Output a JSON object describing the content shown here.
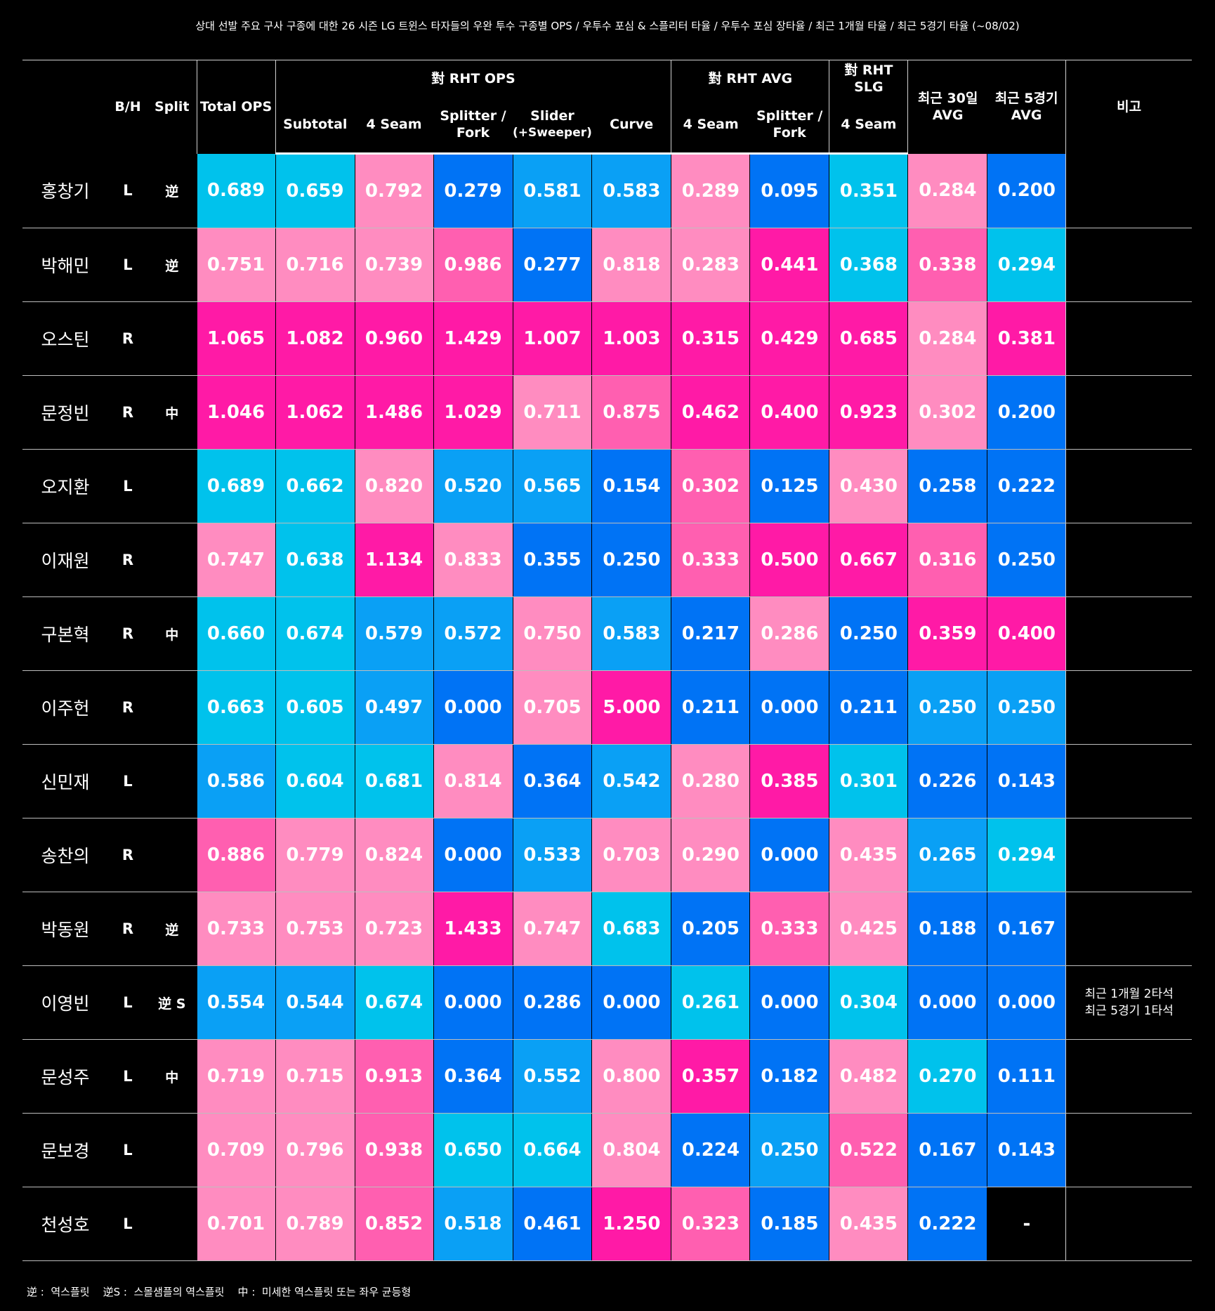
{
  "title": "상대 선발 주요 구사 구종에 대한 26 시즌 LG 트윈스 타자들의 우완 투수 구종별 OPS  / 우투수 포심 & 스플리터 타율 /  우투수 포심 장타율 / 최근 1개월 타율 / 최근 5경기 타율 (~08/02)",
  "header": {
    "bh": "B/H",
    "split": "Split",
    "total_ops": "Total OPS",
    "group_rht_ops": "對 RHT OPS",
    "group_rht_avg": "對 RHT AVG",
    "group_rht_slg_l1": "對 RHT",
    "group_rht_slg_l2": "SLG",
    "recent30_l1": "최근 30일",
    "recent30_l2": "AVG",
    "recent5_l1": "최근 5경기",
    "recent5_l2": "AVG",
    "note": "비고",
    "sub_subtotal": "Subtotal",
    "sub_4seam": "4 Seam",
    "sub_splitter_l1": "Splitter /",
    "sub_splitter_l2": "Fork",
    "sub_slider_l1": "Slider",
    "sub_slider_l2": "(+Sweeper)",
    "sub_curve": "Curve",
    "avg_4seam": "4 Seam",
    "avg_splitter_l1": "Splitter /",
    "avg_splitter_l2": "Fork",
    "slg_4seam": "4 Seam"
  },
  "colors": {
    "background": "#000000",
    "cyan": "#00c2ec",
    "sky": "#0aa0f5",
    "blue": "#0073f5",
    "light_pink": "#ff8cc0",
    "pink": "#ff5fb0",
    "hot_pink": "#ff1aa6"
  },
  "rows": [
    {
      "name": "홍창기",
      "bh": "L",
      "split": "逆",
      "note_l1": "",
      "note_l2": "",
      "values": [
        "0.689",
        "0.659",
        "0.792",
        "0.279",
        "0.581",
        "0.583",
        "0.289",
        "0.095",
        "0.351",
        "0.284",
        "0.200"
      ],
      "colors": [
        "cyan",
        "cyan",
        "light_pink",
        "blue",
        "sky",
        "sky",
        "light_pink",
        "blue",
        "cyan",
        "light_pink",
        "blue"
      ]
    },
    {
      "name": "박해민",
      "bh": "L",
      "split": "逆",
      "note_l1": "",
      "note_l2": "",
      "values": [
        "0.751",
        "0.716",
        "0.739",
        "0.986",
        "0.277",
        "0.818",
        "0.283",
        "0.441",
        "0.368",
        "0.338",
        "0.294"
      ],
      "colors": [
        "light_pink",
        "light_pink",
        "light_pink",
        "pink",
        "blue",
        "light_pink",
        "light_pink",
        "hot_pink",
        "cyan",
        "pink",
        "cyan"
      ]
    },
    {
      "name": "오스틴",
      "bh": "R",
      "split": "",
      "note_l1": "",
      "note_l2": "",
      "values": [
        "1.065",
        "1.082",
        "0.960",
        "1.429",
        "1.007",
        "1.003",
        "0.315",
        "0.429",
        "0.685",
        "0.284",
        "0.381"
      ],
      "colors": [
        "hot_pink",
        "hot_pink",
        "hot_pink",
        "hot_pink",
        "hot_pink",
        "hot_pink",
        "hot_pink",
        "hot_pink",
        "hot_pink",
        "light_pink",
        "hot_pink"
      ]
    },
    {
      "name": "문정빈",
      "bh": "R",
      "split": "中",
      "note_l1": "",
      "note_l2": "",
      "values": [
        "1.046",
        "1.062",
        "1.486",
        "1.029",
        "0.711",
        "0.875",
        "0.462",
        "0.400",
        "0.923",
        "0.302",
        "0.200"
      ],
      "colors": [
        "hot_pink",
        "hot_pink",
        "hot_pink",
        "hot_pink",
        "light_pink",
        "pink",
        "hot_pink",
        "hot_pink",
        "hot_pink",
        "light_pink",
        "blue"
      ]
    },
    {
      "name": "오지환",
      "bh": "L",
      "split": "",
      "note_l1": "",
      "note_l2": "",
      "values": [
        "0.689",
        "0.662",
        "0.820",
        "0.520",
        "0.565",
        "0.154",
        "0.302",
        "0.125",
        "0.430",
        "0.258",
        "0.222"
      ],
      "colors": [
        "cyan",
        "cyan",
        "light_pink",
        "sky",
        "sky",
        "blue",
        "pink",
        "blue",
        "light_pink",
        "blue",
        "blue"
      ]
    },
    {
      "name": "이재원",
      "bh": "R",
      "split": "",
      "note_l1": "",
      "note_l2": "",
      "values": [
        "0.747",
        "0.638",
        "1.134",
        "0.833",
        "0.355",
        "0.250",
        "0.333",
        "0.500",
        "0.667",
        "0.316",
        "0.250"
      ],
      "colors": [
        "light_pink",
        "cyan",
        "hot_pink",
        "light_pink",
        "blue",
        "blue",
        "pink",
        "hot_pink",
        "hot_pink",
        "pink",
        "blue"
      ]
    },
    {
      "name": "구본혁",
      "bh": "R",
      "split": "中",
      "note_l1": "",
      "note_l2": "",
      "values": [
        "0.660",
        "0.674",
        "0.579",
        "0.572",
        "0.750",
        "0.583",
        "0.217",
        "0.286",
        "0.250",
        "0.359",
        "0.400"
      ],
      "colors": [
        "cyan",
        "cyan",
        "sky",
        "sky",
        "light_pink",
        "sky",
        "blue",
        "light_pink",
        "blue",
        "hot_pink",
        "hot_pink"
      ]
    },
    {
      "name": "이주헌",
      "bh": "R",
      "split": "",
      "note_l1": "",
      "note_l2": "",
      "values": [
        "0.663",
        "0.605",
        "0.497",
        "0.000",
        "0.705",
        "5.000",
        "0.211",
        "0.000",
        "0.211",
        "0.250",
        "0.250"
      ],
      "colors": [
        "cyan",
        "cyan",
        "sky",
        "blue",
        "light_pink",
        "hot_pink",
        "blue",
        "blue",
        "blue",
        "sky",
        "sky"
      ]
    },
    {
      "name": "신민재",
      "bh": "L",
      "split": "",
      "note_l1": "",
      "note_l2": "",
      "values": [
        "0.586",
        "0.604",
        "0.681",
        "0.814",
        "0.364",
        "0.542",
        "0.280",
        "0.385",
        "0.301",
        "0.226",
        "0.143"
      ],
      "colors": [
        "sky",
        "cyan",
        "cyan",
        "light_pink",
        "blue",
        "sky",
        "light_pink",
        "hot_pink",
        "cyan",
        "blue",
        "blue"
      ]
    },
    {
      "name": "송찬의",
      "bh": "R",
      "split": "",
      "note_l1": "",
      "note_l2": "",
      "values": [
        "0.886",
        "0.779",
        "0.824",
        "0.000",
        "0.533",
        "0.703",
        "0.290",
        "0.000",
        "0.435",
        "0.265",
        "0.294"
      ],
      "colors": [
        "pink",
        "light_pink",
        "light_pink",
        "blue",
        "sky",
        "light_pink",
        "light_pink",
        "blue",
        "light_pink",
        "sky",
        "cyan"
      ]
    },
    {
      "name": "박동원",
      "bh": "R",
      "split": "逆",
      "note_l1": "",
      "note_l2": "",
      "values": [
        "0.733",
        "0.753",
        "0.723",
        "1.433",
        "0.747",
        "0.683",
        "0.205",
        "0.333",
        "0.425",
        "0.188",
        "0.167"
      ],
      "colors": [
        "light_pink",
        "light_pink",
        "light_pink",
        "hot_pink",
        "light_pink",
        "cyan",
        "blue",
        "pink",
        "light_pink",
        "blue",
        "blue"
      ]
    },
    {
      "name": "이영빈",
      "bh": "L",
      "split": "逆 S",
      "note_l1": "최근 1개월 2타석",
      "note_l2": "최근 5경기 1타석",
      "values": [
        "0.554",
        "0.544",
        "0.674",
        "0.000",
        "0.286",
        "0.000",
        "0.261",
        "0.000",
        "0.304",
        "0.000",
        "0.000"
      ],
      "colors": [
        "sky",
        "sky",
        "cyan",
        "blue",
        "blue",
        "blue",
        "cyan",
        "blue",
        "cyan",
        "blue",
        "blue"
      ]
    },
    {
      "name": "문성주",
      "bh": "L",
      "split": "中",
      "note_l1": "",
      "note_l2": "",
      "values": [
        "0.719",
        "0.715",
        "0.913",
        "0.364",
        "0.552",
        "0.800",
        "0.357",
        "0.182",
        "0.482",
        "0.270",
        "0.111"
      ],
      "colors": [
        "light_pink",
        "light_pink",
        "pink",
        "blue",
        "sky",
        "light_pink",
        "hot_pink",
        "blue",
        "light_pink",
        "cyan",
        "blue"
      ]
    },
    {
      "name": "문보경",
      "bh": "L",
      "split": "",
      "note_l1": "",
      "note_l2": "",
      "values": [
        "0.709",
        "0.796",
        "0.938",
        "0.650",
        "0.664",
        "0.804",
        "0.224",
        "0.250",
        "0.522",
        "0.167",
        "0.143"
      ],
      "colors": [
        "light_pink",
        "light_pink",
        "pink",
        "cyan",
        "cyan",
        "light_pink",
        "blue",
        "sky",
        "pink",
        "blue",
        "blue"
      ]
    },
    {
      "name": "천성호",
      "bh": "L",
      "split": "",
      "note_l1": "",
      "note_l2": "",
      "values": [
        "0.701",
        "0.789",
        "0.852",
        "0.518",
        "0.461",
        "1.250",
        "0.323",
        "0.185",
        "0.435",
        "0.222",
        "-"
      ],
      "colors": [
        "light_pink",
        "light_pink",
        "pink",
        "sky",
        "blue",
        "hot_pink",
        "pink",
        "blue",
        "light_pink",
        "blue",
        "none"
      ]
    }
  ],
  "footnote": "逆 :  역스플릿    逆S :  스몰샘플의 역스플릿    中 :  미세한 역스플릿 또는 좌우 균등형"
}
